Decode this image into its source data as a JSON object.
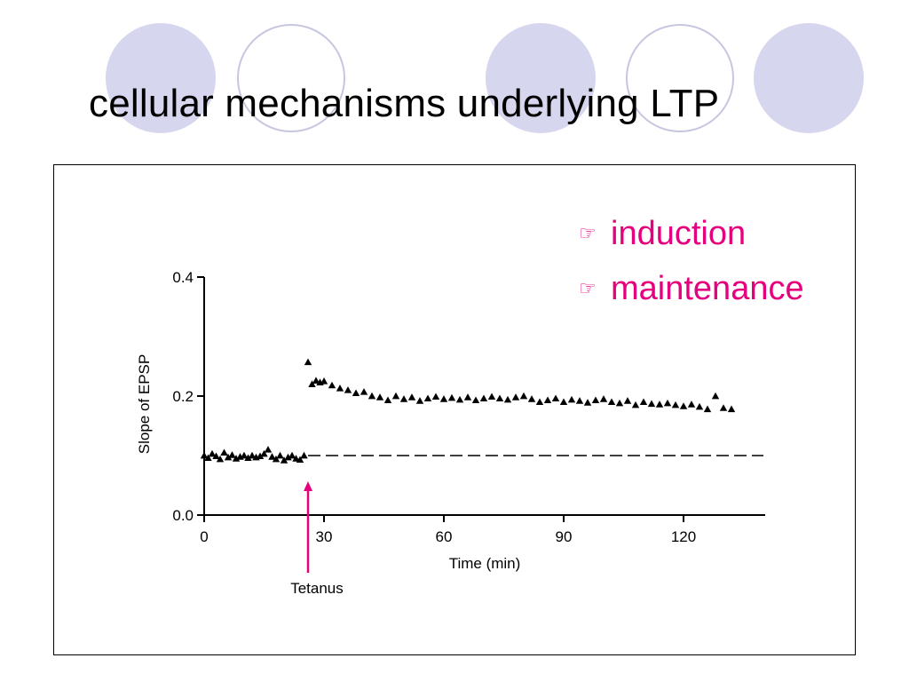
{
  "slide": {
    "title": "cellular mechanisms underlying LTP",
    "bullets": [
      {
        "icon": "pointing-hand-icon",
        "label": "induction"
      },
      {
        "icon": "pointing-hand-icon",
        "label": "maintenance"
      }
    ],
    "colors": {
      "accent": "#e5007d",
      "circle_fill": "#d6d6ee",
      "circle_outline": "#c6c6e0",
      "ink": "#000000"
    }
  },
  "chart_data": {
    "type": "scatter",
    "title": "",
    "xlabel": "Time (min)",
    "ylabel": "Slope of EPSP",
    "xlim": [
      0,
      140
    ],
    "ylim": [
      0,
      0.4
    ],
    "xticks": [
      0,
      30,
      60,
      90,
      120
    ],
    "xtick_labels": [
      "0",
      "30",
      "60",
      "90",
      "120"
    ],
    "yticks": [
      0,
      0.2,
      0.4
    ],
    "ytick_labels": [
      "0.0",
      "0.2",
      "0.4"
    ],
    "grid": false,
    "marker": "triangle",
    "annotation": {
      "label": "Tetanus",
      "x": 26
    },
    "baseline": {
      "style": "dashed",
      "x": [
        26,
        140
      ],
      "y": [
        0.1,
        0.1
      ]
    },
    "series": [
      {
        "x": [
          0,
          1,
          2,
          3,
          4,
          5,
          6,
          7,
          8,
          9,
          10,
          11,
          12,
          13,
          14,
          15,
          16,
          17,
          18,
          19,
          20,
          21,
          22,
          23,
          24,
          25,
          26,
          27,
          28,
          29,
          30,
          32,
          34,
          36,
          38,
          40,
          42,
          44,
          46,
          48,
          50,
          52,
          54,
          56,
          58,
          60,
          62,
          64,
          66,
          68,
          70,
          72,
          74,
          76,
          78,
          80,
          82,
          84,
          86,
          88,
          90,
          92,
          94,
          96,
          98,
          100,
          102,
          104,
          106,
          108,
          110,
          112,
          114,
          116,
          118,
          120,
          122,
          124,
          126,
          128,
          130,
          132
        ],
        "y": [
          0.1,
          0.096,
          0.103,
          0.099,
          0.094,
          0.105,
          0.097,
          0.101,
          0.095,
          0.098,
          0.1,
          0.096,
          0.1,
          0.097,
          0.099,
          0.103,
          0.11,
          0.098,
          0.094,
          0.1,
          0.092,
          0.097,
          0.1,
          0.095,
          0.093,
          0.1,
          0.257,
          0.22,
          0.226,
          0.223,
          0.225,
          0.218,
          0.213,
          0.21,
          0.205,
          0.207,
          0.2,
          0.198,
          0.193,
          0.2,
          0.195,
          0.198,
          0.192,
          0.196,
          0.199,
          0.195,
          0.197,
          0.194,
          0.198,
          0.193,
          0.196,
          0.199,
          0.196,
          0.194,
          0.198,
          0.2,
          0.195,
          0.19,
          0.193,
          0.196,
          0.19,
          0.194,
          0.192,
          0.189,
          0.193,
          0.195,
          0.19,
          0.188,
          0.192,
          0.185,
          0.19,
          0.187,
          0.186,
          0.188,
          0.185,
          0.183,
          0.186,
          0.182,
          0.178,
          0.2,
          0.18,
          0.178
        ]
      }
    ]
  }
}
